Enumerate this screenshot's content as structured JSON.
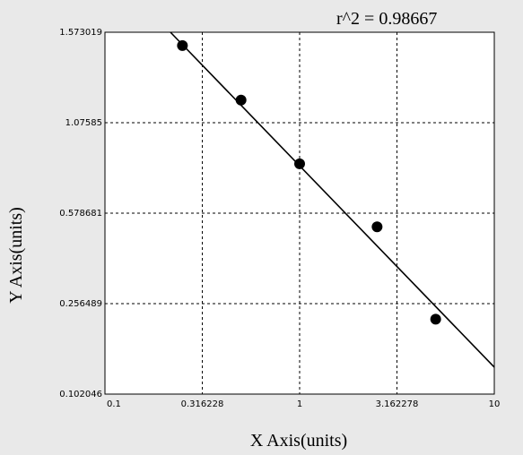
{
  "chart_data": {
    "type": "scatter",
    "annotation": "r^2  = 0.98667",
    "x_label": "X Axis(units)",
    "y_label": "Y Axis(units)",
    "xscale": "log",
    "yscale": "piecewise",
    "xlim": [
      0.1,
      10
    ],
    "xticks": [
      0.1,
      0.316228,
      1,
      3.162278,
      10
    ],
    "ylim": [
      0.102046,
      1.573019
    ],
    "yticks": [
      0.102046,
      0.256489,
      0.578681,
      1.07585,
      1.573019
    ],
    "grid": true,
    "points": {
      "color": "#000000",
      "x": [
        0.25,
        0.5,
        1,
        2.5,
        5
      ],
      "y": [
        1.5,
        1.2,
        0.85,
        0.53,
        0.23
      ]
    },
    "fit_line": {
      "color": "#000000",
      "x": [
        0.217,
        10
      ],
      "y": [
        1.573019,
        0.148
      ]
    }
  }
}
